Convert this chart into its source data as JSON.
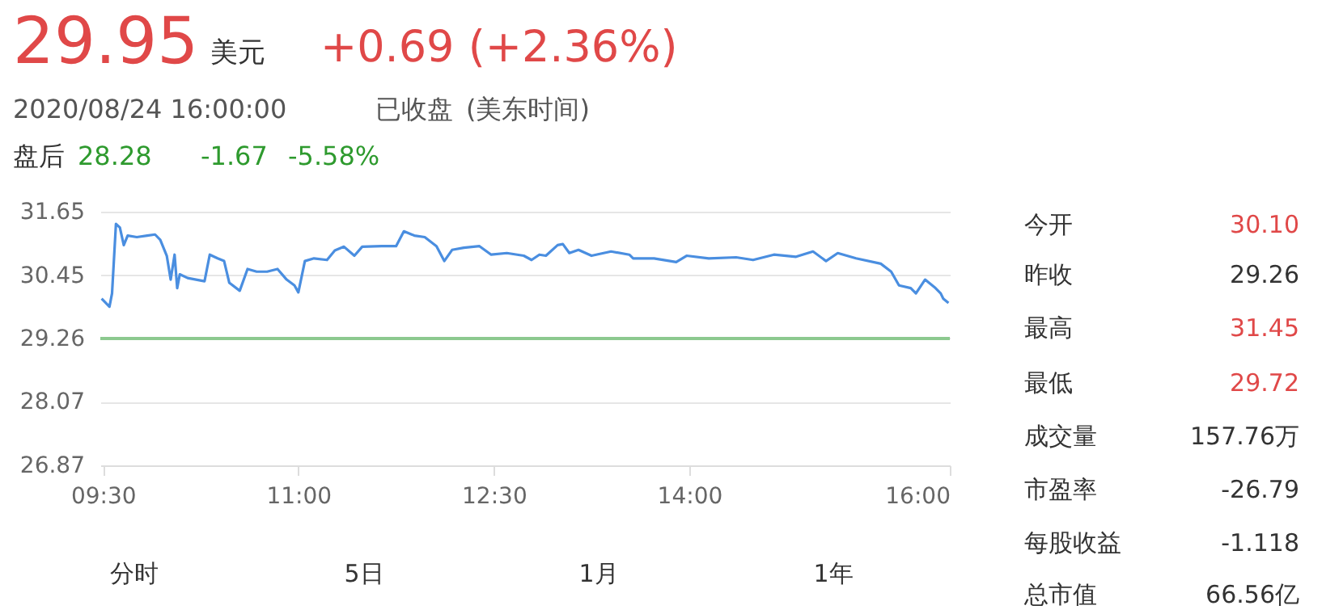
{
  "chart_data": {
    "type": "line",
    "x": [
      9.49,
      9.55,
      9.57,
      9.6,
      9.63,
      9.66,
      9.69,
      9.76,
      9.84,
      9.9,
      9.94,
      9.99,
      10.02,
      10.05,
      10.07,
      10.09,
      10.15,
      10.28,
      10.32,
      10.38,
      10.43,
      10.47,
      10.55,
      10.61,
      10.68,
      10.76,
      10.84,
      10.91,
      10.97,
      11.0,
      11.05,
      11.12,
      11.22,
      11.28,
      11.35,
      11.43,
      11.49,
      11.64,
      11.75,
      11.81,
      11.89,
      11.97,
      12.06,
      12.12,
      12.18,
      12.27,
      12.39,
      12.48,
      12.6,
      12.73,
      12.79,
      12.85,
      12.9,
      12.99,
      13.03,
      13.08,
      13.15,
      13.25,
      13.4,
      13.54,
      13.57,
      13.73,
      13.9,
      13.98,
      14.15,
      14.36,
      14.49,
      14.65,
      14.82,
      14.95,
      15.05,
      15.14,
      15.28,
      15.47,
      15.55,
      15.61,
      15.7,
      15.74,
      15.81,
      15.89,
      15.93,
      15.95,
      15.99
    ],
    "series": [
      {
        "color": "#4a8ee0",
        "values": [
          30.01,
          29.86,
          30.11,
          31.42,
          31.35,
          31.02,
          31.2,
          31.17,
          31.2,
          31.22,
          31.12,
          30.82,
          30.37,
          30.84,
          30.21,
          30.47,
          30.4,
          30.34,
          30.84,
          30.77,
          30.72,
          30.31,
          30.16,
          30.57,
          30.52,
          30.52,
          30.57,
          30.37,
          30.26,
          30.13,
          30.72,
          30.77,
          30.74,
          30.92,
          30.99,
          30.82,
          30.99,
          31.0,
          31.0,
          31.28,
          31.2,
          31.17,
          31.0,
          30.72,
          30.93,
          30.97,
          31.0,
          30.84,
          30.87,
          30.82,
          30.74,
          30.84,
          30.82,
          31.02,
          31.04,
          30.87,
          30.93,
          30.82,
          30.9,
          30.84,
          30.77,
          30.77,
          30.7,
          30.82,
          30.77,
          30.79,
          30.74,
          30.84,
          30.8,
          30.9,
          30.72,
          30.87,
          30.77,
          30.67,
          30.52,
          30.26,
          30.21,
          30.11,
          30.37,
          30.21,
          30.11,
          30.01,
          29.93
        ]
      }
    ],
    "xlim": [
      9.48,
      16.0
    ],
    "xticks": [
      {
        "value": 9.5,
        "label": "09:30"
      },
      {
        "value": 11,
        "label": "11:00"
      },
      {
        "value": 12.5,
        "label": "12:30"
      },
      {
        "value": 14,
        "label": "14:00"
      },
      {
        "value": 16,
        "label": "16:00"
      }
    ],
    "ylim": [
      26.87,
      31.65
    ],
    "yticks": [
      26.87,
      28.07,
      29.26,
      30.45,
      31.65
    ],
    "grid": "y",
    "ref_lines": [
      {
        "axis": "y",
        "value": 29.26,
        "color": "#8cc98f"
      }
    ],
    "annotations": [
      "29.95",
      "美元",
      "+0.69 (+2.36%)",
      "2020/08/24 16:00:00",
      "已收盘",
      "(美东时间)",
      "盘后",
      "28.28",
      "-1.67",
      "-5.58%",
      "今开",
      "30.10",
      "昨收",
      "29.26",
      "最高",
      "31.45",
      "最低",
      "29.72",
      "成交量",
      "157.76万",
      "市盈率",
      "-26.79",
      "每股收益",
      "-1.118",
      "总市值",
      "66.56亿",
      "分时",
      "5日",
      "1月",
      "1年"
    ]
  }
}
